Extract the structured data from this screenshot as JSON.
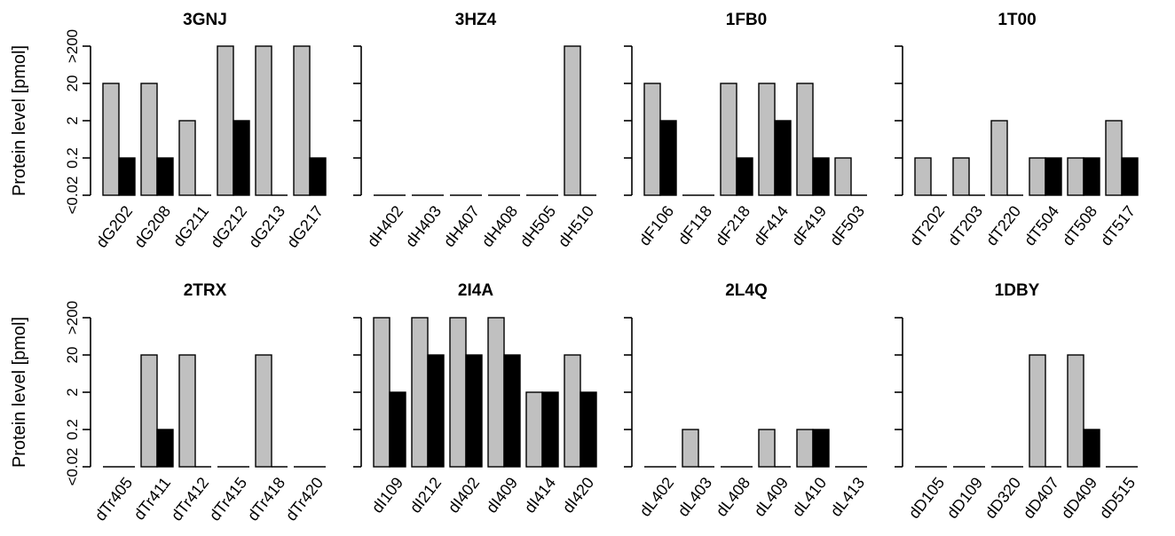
{
  "ylabel": "Protein level [pmol]",
  "y_tick_labels": [
    "<0.02",
    "0.2",
    "2",
    "20",
    ">200"
  ],
  "colors": {
    "series_a": "#c0c0c0",
    "series_b": "#000000",
    "outline": "#000000"
  },
  "chart_data": [
    {
      "type": "bar",
      "title": "3GNJ",
      "categories": [
        "dG202",
        "dG208",
        "dG211",
        "dG212",
        "dG213",
        "dG217"
      ],
      "series": [
        {
          "values": [
            20,
            20,
            2,
            200,
            200,
            200
          ]
        },
        {
          "values": [
            0.2,
            0.2,
            0.02,
            2,
            0.02,
            0.2
          ]
        }
      ],
      "ylim": [
        0.02,
        200
      ],
      "ylabel": "Protein level [pmol]"
    },
    {
      "type": "bar",
      "title": "3HZ4",
      "categories": [
        "dH402",
        "dH403",
        "dH407",
        "dH408",
        "dH505",
        "dH510"
      ],
      "series": [
        {
          "values": [
            0.02,
            0.02,
            0.02,
            0.02,
            0.02,
            200
          ]
        },
        {
          "values": [
            0.02,
            0.02,
            0.02,
            0.02,
            0.02,
            0.02
          ]
        }
      ],
      "ylim": [
        0.02,
        200
      ],
      "ylabel": ""
    },
    {
      "type": "bar",
      "title": "1FB0",
      "categories": [
        "dF106",
        "dF118",
        "dF218",
        "dF414",
        "dF419",
        "dF503"
      ],
      "series": [
        {
          "values": [
            20,
            0.02,
            20,
            20,
            20,
            0.2
          ]
        },
        {
          "values": [
            2,
            0.02,
            0.2,
            2,
            0.2,
            0.02
          ]
        }
      ],
      "ylim": [
        0.02,
        200
      ],
      "ylabel": ""
    },
    {
      "type": "bar",
      "title": "1T00",
      "categories": [
        "dT202",
        "dT203",
        "dT220",
        "dT504",
        "dT508",
        "dT517"
      ],
      "series": [
        {
          "values": [
            0.2,
            0.2,
            2,
            0.2,
            0.2,
            2
          ]
        },
        {
          "values": [
            0.02,
            0.02,
            0.02,
            0.2,
            0.2,
            0.2
          ]
        }
      ],
      "ylim": [
        0.02,
        200
      ],
      "ylabel": ""
    },
    {
      "type": "bar",
      "title": "2TRX",
      "categories": [
        "dTr405",
        "dTr411",
        "dTr412",
        "dTr415",
        "dTr418",
        "dTr420"
      ],
      "series": [
        {
          "values": [
            0.02,
            20,
            20,
            0.02,
            20,
            0.02
          ]
        },
        {
          "values": [
            0.02,
            0.2,
            0.02,
            0.02,
            0.02,
            0.02
          ]
        }
      ],
      "ylim": [
        0.02,
        200
      ],
      "ylabel": "Protein level [pmol]"
    },
    {
      "type": "bar",
      "title": "2I4A",
      "categories": [
        "dI109",
        "dI212",
        "dI402",
        "dI409",
        "dI414",
        "dI420"
      ],
      "series": [
        {
          "values": [
            200,
            200,
            200,
            200,
            2,
            20
          ]
        },
        {
          "values": [
            2,
            20,
            20,
            20,
            2,
            2
          ]
        }
      ],
      "ylim": [
        0.02,
        200
      ],
      "ylabel": ""
    },
    {
      "type": "bar",
      "title": "2L4Q",
      "categories": [
        "dL402",
        "dL403",
        "dL408",
        "dL409",
        "dL410",
        "dL413"
      ],
      "series": [
        {
          "values": [
            0.02,
            0.2,
            0.02,
            0.2,
            0.2,
            0.02
          ]
        },
        {
          "values": [
            0.02,
            0.02,
            0.02,
            0.02,
            0.2,
            0.02
          ]
        }
      ],
      "ylim": [
        0.02,
        200
      ],
      "ylabel": ""
    },
    {
      "type": "bar",
      "title": "1DBY",
      "categories": [
        "dD105",
        "dD109",
        "dD320",
        "dD407",
        "dD409",
        "dD515"
      ],
      "series": [
        {
          "values": [
            0.02,
            0.02,
            0.02,
            20,
            20,
            0.02
          ]
        },
        {
          "values": [
            0.02,
            0.02,
            0.02,
            0.02,
            0.2,
            0.02
          ]
        }
      ],
      "ylim": [
        0.02,
        200
      ],
      "ylabel": ""
    }
  ]
}
